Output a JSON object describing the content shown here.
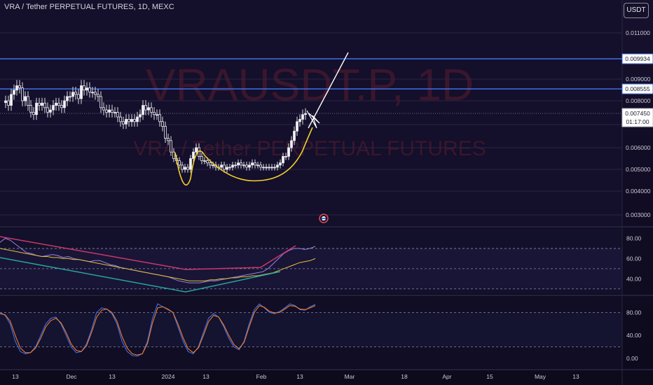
{
  "header": {
    "title": "VRA / Tether PERPETUAL FUTURES, 1D, MEXC",
    "currency_button": "USDT"
  },
  "watermark": {
    "symbol": "VRAUSDT.P, 1D",
    "name": "VRA / Tether PERPETUAL FUTURES"
  },
  "price_axis": {
    "ticks": [
      "0.011000",
      "0.009000",
      "0.008000",
      "0.006000",
      "0.005000",
      "0.004000",
      "0.003000"
    ],
    "level_labels": [
      "0.009934",
      "0.008555"
    ],
    "current_price": "0.007450",
    "countdown": "01:17:00"
  },
  "rsi_axis": {
    "ticks": [
      "80.00",
      "60.00",
      "40.00"
    ]
  },
  "stoch_axis": {
    "ticks": [
      "80.00",
      "40.00",
      "0.00"
    ]
  },
  "time_axis": {
    "labels": [
      "13",
      "Dec",
      "13",
      "2024",
      "13",
      "Feb",
      "13",
      "Mar",
      "18",
      "Apr",
      "15",
      "May",
      "13"
    ]
  },
  "colors": {
    "background": "#120d26",
    "up": "#e8e8ee",
    "down": "#e8e8ee",
    "level_line": "#3f6fe6",
    "pattern": "#f2d02b",
    "rsi": "#9b82e0",
    "rsi_ma": "#e0c040",
    "stoch_k": "#3f6fe6",
    "stoch_d": "#f07a28",
    "trend_red": "#c8386a",
    "trend_green": "#26a69a"
  },
  "chart_data": [
    {
      "type": "candlestick",
      "series": [
        {
          "name": "",
          "close": [
            0.008,
            0.0078,
            0.0083,
            0.0085,
            0.0087,
            0.0086,
            0.008,
            0.0082,
            0.0078,
            0.0075,
            0.0074,
            0.0079,
            0.0078,
            0.0079,
            0.0077,
            0.0075,
            0.0076,
            0.0078,
            0.0079,
            0.0078,
            0.0077,
            0.008,
            0.0082,
            0.0082,
            0.0084,
            0.0083,
            0.0081,
            0.0087,
            0.0085,
            0.0086,
            0.0084,
            0.0084,
            0.0083,
            0.0082,
            0.0077,
            0.0076,
            0.0075,
            0.0076,
            0.0075,
            0.0075,
            0.0073,
            0.0071,
            0.007,
            0.0072,
            0.0071,
            0.0072,
            0.0071,
            0.0073,
            0.0074,
            0.0078,
            0.0076,
            0.0077,
            0.0075,
            0.0074,
            0.0074,
            0.0071,
            0.0069,
            0.0064,
            0.0063,
            0.0058,
            0.0055,
            0.0054,
            0.0052,
            0.005,
            0.0051,
            0.005,
            0.0055,
            0.0058,
            0.006,
            0.0056,
            0.0054,
            0.0054,
            0.0053,
            0.0052,
            0.0052,
            0.0051,
            0.0051,
            0.0052,
            0.005,
            0.0051,
            0.0051,
            0.0052,
            0.0052,
            0.0053,
            0.0052,
            0.0052,
            0.0051,
            0.0052,
            0.0053,
            0.0052,
            0.0052,
            0.0051,
            0.0051,
            0.0051,
            0.0051,
            0.0051,
            0.0051,
            0.0052,
            0.0053,
            0.0056,
            0.0056,
            0.006,
            0.0063,
            0.0067,
            0.0071,
            0.0072,
            0.0074,
            0.00745
          ]
        },
        {
          "name": "levels",
          "values": [
            0.009934,
            0.008555
          ]
        }
      ],
      "ylim": [
        0.0025,
        0.0118
      ],
      "grid": true
    },
    {
      "type": "line",
      "series": [
        {
          "name": "",
          "values": [
            76,
            80,
            78,
            74,
            70,
            66,
            65,
            63,
            62,
            63,
            64,
            63,
            61,
            62,
            60,
            59,
            58,
            57,
            58,
            58,
            56,
            54,
            53,
            51,
            50,
            49,
            48,
            47,
            46,
            45,
            44,
            43,
            42,
            40,
            38,
            37,
            36,
            36,
            36,
            37,
            38,
            38,
            39,
            40,
            41,
            42,
            43,
            44,
            45,
            46,
            47,
            50,
            55,
            60,
            65,
            68,
            70,
            70,
            69,
            70,
            72
          ]
        },
        {
          "name": "",
          "values": [
            70,
            69,
            68,
            67,
            66,
            65,
            64,
            63,
            62,
            62,
            61,
            61,
            60,
            60,
            59,
            59,
            58,
            57,
            56,
            55,
            54,
            53,
            52,
            51,
            50,
            49,
            48,
            47,
            46,
            45,
            44,
            43,
            42,
            41,
            40,
            39,
            38,
            38,
            38,
            38,
            39,
            39,
            40,
            40,
            41,
            41,
            42,
            42,
            43,
            43,
            44,
            45,
            46,
            48,
            50,
            52,
            54,
            56,
            57,
            58,
            60
          ]
        }
      ],
      "ylim": [
        25,
        90
      ],
      "grid": true
    },
    {
      "type": "line",
      "series": [
        {
          "name": "",
          "values": [
            80,
            75,
            60,
            30,
            12,
            8,
            10,
            20,
            40,
            60,
            70,
            72,
            60,
            40,
            20,
            10,
            12,
            25,
            50,
            80,
            88,
            86,
            78,
            60,
            30,
            12,
            5,
            4,
            8,
            30,
            70,
            95,
            90,
            85,
            80,
            55,
            30,
            12,
            8,
            20,
            45,
            70,
            78,
            72,
            55,
            35,
            20,
            15,
            30,
            60,
            85,
            95,
            88,
            80,
            78,
            82,
            88,
            95,
            92,
            85,
            84,
            90,
            94
          ]
        },
        {
          "name": "",
          "values": [
            78,
            76,
            65,
            40,
            18,
            10,
            10,
            18,
            35,
            55,
            66,
            70,
            62,
            45,
            25,
            14,
            12,
            22,
            45,
            72,
            84,
            86,
            80,
            65,
            38,
            18,
            8,
            6,
            8,
            26,
            62,
            88,
            90,
            86,
            80,
            60,
            36,
            17,
            10,
            18,
            40,
            64,
            75,
            72,
            58,
            40,
            24,
            17,
            28,
            55,
            80,
            92,
            89,
            82,
            79,
            80,
            86,
            92,
            91,
            86,
            85,
            88,
            92
          ]
        }
      ],
      "ylim": [
        -10,
        110
      ],
      "grid": true
    }
  ]
}
